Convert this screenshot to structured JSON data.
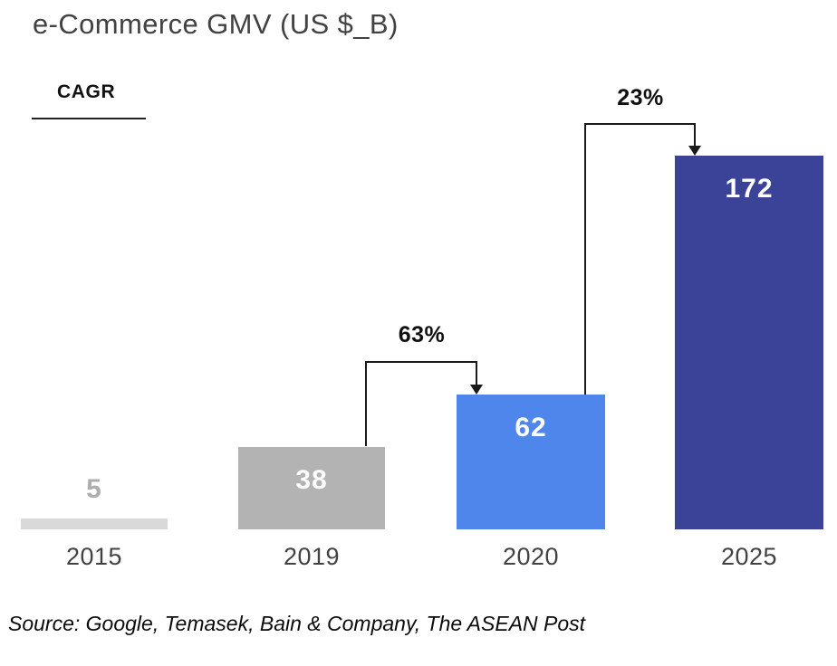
{
  "title": "e-Commerce GMV (US $_B)",
  "cagr_heading": "CAGR",
  "source": "Source: Google, Temasek, Bain & Company, The ASEAN Post",
  "chart_data": {
    "type": "bar",
    "title": "e-Commerce GMV (US $_B)",
    "categories": [
      "2015",
      "2019",
      "2020",
      "2025"
    ],
    "values": [
      5,
      38,
      62,
      172
    ],
    "bar_colors": [
      "#D9D9D9",
      "#B3B3B3",
      "#4E86EC",
      "#3A4398"
    ],
    "value_label_colors": [
      "#AEAEAE",
      "#FFFFFF",
      "#FFFFFF",
      "#FFFFFF"
    ],
    "annotations": [
      {
        "label": "63%",
        "from": "2019",
        "to": "2020",
        "meaning": "CAGR 2019-2020"
      },
      {
        "label": "23%",
        "from": "2020",
        "to": "2025",
        "meaning": "CAGR 2020-2025"
      }
    ],
    "xlabel": "",
    "ylabel": "",
    "ylim": [
      0,
      180
    ],
    "grid": false,
    "legend": false,
    "annotation_line_color": "#1a1a1a",
    "axis_label_color": "#424242",
    "title_color": "#424242"
  }
}
